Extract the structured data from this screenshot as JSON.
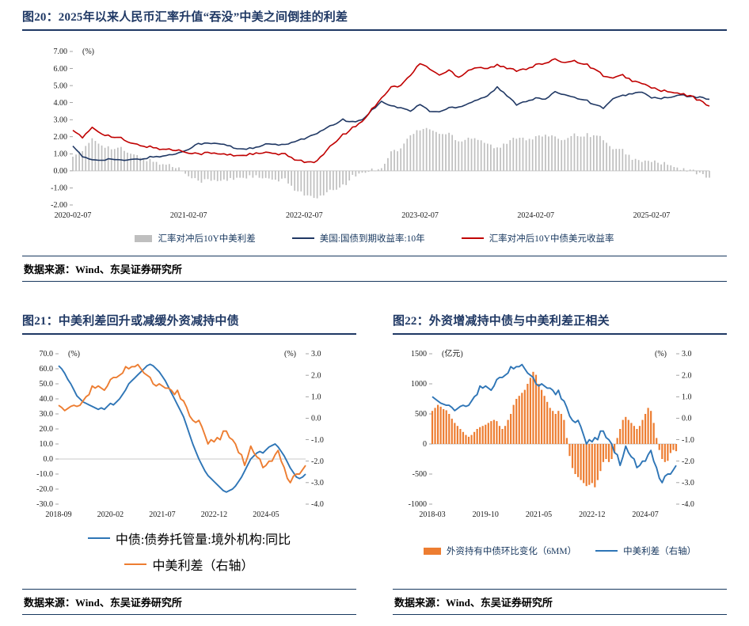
{
  "figures": [
    {
      "title": "图20：2025年以来人民币汇率升值“吞没”中美之间倒挂的利差",
      "source": "数据来源：Wind、东吴证券研究所"
    },
    {
      "title": "图21：中美利差回升或减缓外资减持中债",
      "source": "数据来源：Wind、东吴证券研究所"
    },
    {
      "title": "图22：外资增减持中债与中美利差正相关",
      "source": "数据来源：Wind、东吴证券研究所"
    }
  ],
  "colors": {
    "title_navy": "#1F3864",
    "rule_navy": "#1F3864",
    "bar_gray": "#BFBFBF",
    "us10y_navy": "#203864",
    "hedged_red": "#C00000",
    "holdings_blue": "#2E75B6",
    "orange": "#ED7D31"
  },
  "chart_data": [
    {
      "type": "bar",
      "subtype": "combo-bar-line",
      "x_range": [
        "2020-02",
        "2025-08"
      ],
      "freq": "monthly",
      "x_tick_labels": [
        "2020-02-07",
        "2021-02-07",
        "2022-02-07",
        "2023-02-07",
        "2024-02-07",
        "2025-02-07"
      ],
      "x_tick_indices": [
        0,
        12,
        24,
        36,
        48,
        60
      ],
      "ylim_left": [
        -2,
        7
      ],
      "y_ticks_left": [
        "7.00",
        "6.00",
        "5.00",
        "4.00",
        "3.00",
        "2.00",
        "1.00",
        "0.00",
        "-1.00",
        "-2.00"
      ],
      "unit_left": "(%)",
      "grid": false,
      "legend_position": "bottom",
      "series": [
        {
          "name": "汇率对冲后10Y中美利差",
          "type": "bar",
          "axis": "left",
          "color": "#BFBFBF",
          "values": [
            0.95,
            1.1,
            1.9,
            1.55,
            1.3,
            1.3,
            0.95,
            0.82,
            0.6,
            0.45,
            0.33,
            0.15,
            -0.2,
            -0.6,
            -0.55,
            -0.6,
            -0.55,
            -0.4,
            -0.35,
            -0.35,
            -0.5,
            -0.55,
            -0.55,
            -1.05,
            -1.35,
            -1.65,
            -1.45,
            -1.1,
            -0.9,
            -0.35,
            -0.1,
            0.05,
            0.2,
            1.1,
            1.3,
            2.1,
            2.4,
            2.5,
            2.15,
            2.2,
            1.75,
            1.95,
            1.9,
            1.6,
            1.3,
            1.6,
            2.0,
            1.9,
            1.95,
            2.1,
            1.9,
            1.9,
            2.15,
            2.1,
            2.1,
            1.9,
            1.2,
            1.2,
            0.75,
            0.5,
            0.6,
            0.45,
            0.3,
            0.05,
            0.05,
            -0.2,
            -0.4
          ]
        },
        {
          "name": "美国:国债到期收益率:10年",
          "type": "line",
          "axis": "left",
          "color": "#203864",
          "values": [
            1.5,
            0.8,
            0.65,
            0.65,
            0.7,
            0.6,
            0.65,
            0.68,
            0.8,
            0.85,
            0.92,
            1.05,
            1.3,
            1.6,
            1.6,
            1.6,
            1.5,
            1.3,
            1.3,
            1.35,
            1.55,
            1.55,
            1.5,
            1.75,
            1.9,
            2.1,
            2.4,
            2.7,
            3.0,
            2.85,
            3.0,
            3.55,
            4.1,
            3.8,
            3.7,
            3.5,
            3.9,
            3.5,
            3.45,
            3.7,
            3.75,
            3.95,
            4.2,
            4.4,
            4.9,
            4.4,
            3.9,
            4.1,
            4.25,
            4.2,
            4.6,
            4.5,
            4.3,
            4.2,
            3.9,
            3.7,
            4.2,
            4.4,
            4.55,
            4.6,
            4.3,
            4.25,
            4.3,
            4.45,
            4.35,
            4.3,
            4.2
          ]
        },
        {
          "name": "汇率对冲后10Y中债美元收益率",
          "type": "line",
          "axis": "left",
          "color": "#C00000",
          "values": [
            2.45,
            1.9,
            2.55,
            2.2,
            2.0,
            1.9,
            1.6,
            1.5,
            1.4,
            1.3,
            1.25,
            1.2,
            1.1,
            1.0,
            1.05,
            1.0,
            0.95,
            0.9,
            0.95,
            1.0,
            1.05,
            1.0,
            0.95,
            0.7,
            0.55,
            0.45,
            0.95,
            1.6,
            2.1,
            2.5,
            2.9,
            3.6,
            4.3,
            4.9,
            5.0,
            5.6,
            6.3,
            6.0,
            5.6,
            5.9,
            5.5,
            5.9,
            6.1,
            6.0,
            6.2,
            6.0,
            5.9,
            6.0,
            6.2,
            6.3,
            6.5,
            6.4,
            6.45,
            6.3,
            6.0,
            5.6,
            5.4,
            5.6,
            5.3,
            5.1,
            4.9,
            4.7,
            4.6,
            4.5,
            4.4,
            4.1,
            3.8
          ]
        }
      ]
    },
    {
      "type": "line",
      "subtype": "dual-axis-lines",
      "x_range": [
        "2018-09",
        "2025-06"
      ],
      "freq": "monthly",
      "x_tick_labels": [
        "2018-09",
        "2020-02",
        "2021-07",
        "2022-12",
        "2024-05"
      ],
      "x_tick_indices": [
        0,
        17,
        34,
        51,
        68
      ],
      "ylim_left": [
        -30,
        70
      ],
      "y_ticks_left": [
        "70.0",
        "60.0",
        "50.0",
        "40.0",
        "30.0",
        "20.0",
        "10.0",
        "0.0",
        "-10.0",
        "-20.0",
        "-30.0"
      ],
      "unit_left": "(%)",
      "ylim_right": [
        -4,
        3
      ],
      "y_ticks_right": [
        "3.0",
        "2.0",
        "1.0",
        "0.0",
        "-1.0",
        "-2.0",
        "-3.0",
        "-4.0"
      ],
      "unit_right": "(%)",
      "grid": false,
      "legend_position": "bottom",
      "series": [
        {
          "name": "中债:债券托管量:境外机构:同比",
          "type": "line",
          "axis": "left",
          "color": "#2E75B6",
          "values": [
            62,
            60,
            57,
            53,
            50,
            46,
            42,
            40,
            38,
            37,
            36,
            35,
            34,
            33,
            34,
            33,
            35,
            37,
            36,
            38,
            40,
            43,
            46,
            50,
            52,
            54,
            56,
            58,
            60,
            62,
            63,
            62,
            60,
            58,
            55,
            52,
            48,
            44,
            40,
            36,
            32,
            28,
            22,
            16,
            10,
            5,
            0,
            -4,
            -8,
            -11,
            -13,
            -15,
            -17,
            -19,
            -21,
            -22,
            -21,
            -20,
            -18,
            -15,
            -12,
            -8,
            -4,
            0,
            2,
            4,
            5,
            4,
            6,
            8,
            9,
            10,
            8,
            5,
            2,
            -2,
            -6,
            -9,
            -12,
            -13,
            -12,
            -10
          ]
        },
        {
          "name": "中美利差（右轴）",
          "type": "line",
          "axis": "right",
          "color": "#ED7D31",
          "values": [
            0.6,
            0.5,
            0.35,
            0.45,
            0.55,
            0.6,
            0.55,
            0.6,
            0.8,
            1.0,
            1.1,
            1.5,
            1.4,
            1.5,
            1.4,
            1.3,
            1.5,
            1.8,
            1.9,
            1.9,
            2.0,
            2.1,
            2.4,
            2.3,
            2.4,
            2.4,
            2.5,
            2.3,
            2.1,
            2.0,
            1.9,
            1.6,
            1.5,
            1.6,
            1.5,
            1.4,
            1.4,
            1.3,
            1.1,
            1.3,
            0.9,
            0.8,
            0.5,
            0.1,
            -0.1,
            -0.2,
            -0.1,
            -0.4,
            -0.8,
            -1.2,
            -1.0,
            -1.1,
            -0.9,
            -1.0,
            -0.6,
            -0.6,
            -0.9,
            -1.0,
            -1.2,
            -1.6,
            -1.7,
            -2.2,
            -1.8,
            -1.3,
            -1.6,
            -1.8,
            -1.9,
            -2.3,
            -2.2,
            -2.0,
            -2.0,
            -1.7,
            -1.5,
            -2.0,
            -2.3,
            -2.8,
            -3.0,
            -2.7,
            -2.6,
            -2.6,
            -2.4,
            -2.2
          ]
        }
      ]
    },
    {
      "type": "bar",
      "subtype": "combo-bar-line",
      "x_range": [
        "2018-03",
        "2025-06"
      ],
      "freq": "monthly",
      "x_tick_labels": [
        "2018-03",
        "2019-10",
        "2021-05",
        "2022-12",
        "2024-07"
      ],
      "x_tick_indices": [
        0,
        19,
        38,
        57,
        76
      ],
      "ylim_left": [
        -1000,
        1500
      ],
      "y_ticks_left": [
        "1500",
        "1000",
        "500",
        "0",
        "-500",
        "-1000"
      ],
      "unit_left": "(亿元)",
      "ylim_right": [
        -4,
        3
      ],
      "y_ticks_right": [
        "3.0",
        "2.0",
        "1.0",
        "0.0",
        "-1.0",
        "-2.0",
        "-3.0",
        "-4.0"
      ],
      "unit_right": "(%)",
      "grid": false,
      "legend_position": "bottom",
      "series": [
        {
          "name": "外资持有中债环比变化（6MM）",
          "type": "bar",
          "axis": "left",
          "color": "#ED7D31",
          "values": [
            550,
            600,
            650,
            620,
            580,
            560,
            500,
            420,
            350,
            300,
            250,
            200,
            150,
            120,
            150,
            200,
            250,
            280,
            300,
            320,
            350,
            380,
            400,
            380,
            300,
            250,
            300,
            400,
            500,
            650,
            750,
            800,
            850,
            900,
            1000,
            1100,
            1200,
            1150,
            1000,
            900,
            800,
            700,
            600,
            550,
            500,
            550,
            500,
            400,
            100,
            -200,
            -400,
            -500,
            -550,
            -600,
            -650,
            -700,
            -680,
            -650,
            -720,
            -600,
            -450,
            -300,
            -250,
            -300,
            -250,
            -150,
            100,
            250,
            400,
            450,
            400,
            350,
            300,
            250,
            300,
            400,
            500,
            600,
            550,
            350,
            100,
            -100,
            -250,
            -300,
            -280,
            -150,
            -100,
            -120
          ]
        },
        {
          "name": "中美利差（右轴）",
          "type": "line",
          "axis": "right",
          "color": "#2E75B6",
          "values": [
            1.0,
            0.9,
            0.8,
            0.7,
            0.65,
            0.6,
            0.6,
            0.5,
            0.35,
            0.45,
            0.55,
            0.6,
            0.55,
            0.6,
            0.8,
            1.0,
            1.1,
            1.5,
            1.4,
            1.5,
            1.4,
            1.3,
            1.5,
            1.8,
            1.9,
            1.9,
            2.0,
            2.1,
            2.4,
            2.3,
            2.4,
            2.4,
            2.5,
            2.3,
            2.1,
            2.0,
            1.9,
            1.6,
            1.5,
            1.6,
            1.5,
            1.4,
            1.4,
            1.3,
            1.1,
            1.3,
            0.9,
            0.8,
            0.5,
            0.1,
            -0.1,
            -0.2,
            -0.1,
            -0.4,
            -0.8,
            -1.2,
            -1.0,
            -1.1,
            -0.9,
            -1.0,
            -0.6,
            -0.6,
            -0.9,
            -1.0,
            -1.2,
            -1.6,
            -1.7,
            -2.2,
            -1.8,
            -1.3,
            -1.6,
            -1.8,
            -1.9,
            -2.3,
            -2.2,
            -2.0,
            -2.0,
            -1.7,
            -1.5,
            -2.0,
            -2.3,
            -2.8,
            -3.0,
            -2.7,
            -2.6,
            -2.6,
            -2.4,
            -2.2
          ]
        }
      ]
    }
  ]
}
